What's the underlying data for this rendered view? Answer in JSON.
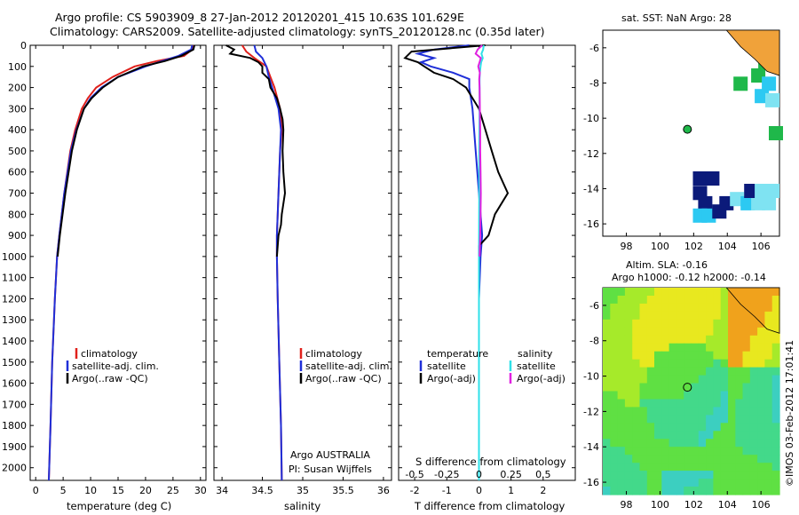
{
  "titles": {
    "line1": "Argo profile: CS 5903909_8 27-Jan-2012 20120201_415 10.63S 101.629E",
    "line2": "Climatology: CARS2009. Satellite-adjusted climatology: synTS_20120128.nc (0.35d later)"
  },
  "side": {
    "sst_title": "sat. SST: NaN Argo: 28",
    "alt_title1": "Altim. SLA: -0.16",
    "alt_title2": "Argo h1000: -0.12 h2000: -0.14",
    "credit": "©IMOS 03-Feb-2012 17:01:41"
  },
  "colors": {
    "clim": "#e0201b",
    "sat": "#1f2fd8",
    "argo": "#000000",
    "cyan": "#2fe0e8",
    "magenta": "#e020e0"
  },
  "chart_data": [
    {
      "type": "line",
      "name": "temperature",
      "xlabel": "temperature (deg C)",
      "xlim": [
        -1,
        31
      ],
      "xticks": [
        "0",
        "5",
        "10",
        "15",
        "20",
        "25",
        "30"
      ],
      "xtick_values": [
        0,
        5,
        10,
        15,
        20,
        25,
        30
      ],
      "ylim": [
        0,
        2060
      ],
      "yticks": [
        "0",
        "100",
        "200",
        "300",
        "400",
        "500",
        "600",
        "700",
        "800",
        "900",
        "1000",
        "1100",
        "1200",
        "1300",
        "1400",
        "1500",
        "1600",
        "1700",
        "1800",
        "1900",
        "2000"
      ],
      "ytick_values": [
        0,
        100,
        200,
        300,
        400,
        500,
        600,
        700,
        800,
        900,
        1000,
        1100,
        1200,
        1300,
        1400,
        1500,
        1600,
        1700,
        1800,
        1900,
        2000
      ],
      "legend": [
        "climatology",
        "satellite-adj. clim.",
        "Argo(..raw -QC)"
      ],
      "series": [
        {
          "name": "climatology",
          "color_key": "clim",
          "depth": [
            0,
            20,
            50,
            75,
            100,
            150,
            200,
            250,
            300,
            400,
            500,
            700,
            900,
            1000,
            1200,
            1500,
            1800,
            2060
          ],
          "values": [
            28.8,
            28.5,
            27,
            22,
            18,
            14,
            11,
            9.5,
            8.4,
            7.2,
            6.3,
            5.2,
            4.3,
            3.9,
            3.5,
            3.0,
            2.7,
            2.4
          ]
        },
        {
          "name": "satellite-adj. clim.",
          "color_key": "sat",
          "depth": [
            0,
            20,
            50,
            75,
            100,
            150,
            200,
            250,
            300,
            400,
            500,
            700,
            900,
            1000,
            1200,
            1500,
            1800,
            2060
          ],
          "values": [
            28.5,
            28.3,
            26,
            23,
            20,
            15,
            12,
            10,
            8.8,
            7.4,
            6.4,
            5.2,
            4.3,
            3.9,
            3.5,
            3.0,
            2.7,
            2.4
          ]
        },
        {
          "name": "Argo(..raw -QC)",
          "color_key": "argo",
          "depth": [
            0,
            20,
            50,
            75,
            100,
            150,
            200,
            250,
            300,
            400,
            500,
            700,
            900,
            1000
          ],
          "values": [
            28.9,
            28.7,
            26.5,
            23.5,
            19.5,
            15,
            12.2,
            10.2,
            8.8,
            7.5,
            6.6,
            5.4,
            4.4,
            4.0
          ]
        }
      ]
    },
    {
      "type": "line",
      "name": "salinity",
      "xlabel": "salinity",
      "xlim": [
        33.9,
        36.1
      ],
      "xticks": [
        "34",
        "34.5",
        "35",
        "35.5",
        "36"
      ],
      "xtick_values": [
        34,
        34.5,
        35,
        35.5,
        36
      ],
      "ylim": [
        0,
        2060
      ],
      "legend": [
        "climatology",
        "satellite-adj. clim.",
        "Argo(..raw -QC)"
      ],
      "annotation": [
        "Argo AUSTRALIA",
        "PI: Susan Wijffels"
      ],
      "series": [
        {
          "name": "climatology",
          "color_key": "clim",
          "depth": [
            0,
            30,
            60,
            100,
            150,
            200,
            300,
            400,
            500,
            700,
            900,
            1000,
            1200,
            1500,
            1800,
            2060
          ],
          "values": [
            34.25,
            34.3,
            34.4,
            34.55,
            34.6,
            34.65,
            34.72,
            34.74,
            34.72,
            34.7,
            34.68,
            34.68,
            34.69,
            34.71,
            34.73,
            34.74
          ]
        },
        {
          "name": "satellite-adj. clim.",
          "color_key": "sat",
          "depth": [
            0,
            30,
            60,
            100,
            150,
            200,
            300,
            400,
            500,
            700,
            900,
            1000,
            1200,
            1500,
            1800,
            2060
          ],
          "values": [
            34.4,
            34.42,
            34.5,
            34.55,
            34.58,
            34.62,
            34.7,
            34.73,
            34.72,
            34.7,
            34.68,
            34.68,
            34.69,
            34.71,
            34.73,
            34.74
          ]
        },
        {
          "name": "Argo(..raw -QC)",
          "color_key": "argo",
          "depth": [
            0,
            20,
            40,
            60,
            80,
            100,
            130,
            160,
            200,
            250,
            300,
            350,
            400,
            500,
            600,
            700,
            800,
            850,
            900,
            950,
            1000
          ],
          "values": [
            34.05,
            34.15,
            34.1,
            34.35,
            34.45,
            34.5,
            34.5,
            34.58,
            34.6,
            34.68,
            34.72,
            34.75,
            34.76,
            34.75,
            34.76,
            34.78,
            34.74,
            34.73,
            34.7,
            34.69,
            34.68
          ]
        }
      ]
    },
    {
      "type": "line",
      "name": "differences",
      "xlabel": "T difference from climatology",
      "xlim": [
        -2.5,
        3
      ],
      "xticks": [
        "-2",
        "-1",
        "0",
        "1",
        "2"
      ],
      "xtick_values": [
        -2,
        -1,
        0,
        1,
        2
      ],
      "s_axis_label": "S difference from climatology",
      "s_ticks": [
        "-0.5",
        "-0.25",
        "0",
        "0.25",
        "0.5"
      ],
      "s_tick_values": [
        -0.5,
        -0.25,
        0,
        0.25,
        0.5
      ],
      "ylim": [
        0,
        2060
      ],
      "legend": {
        "temperature": "temperature",
        "salinity": "salinity",
        "satellite": "satellite",
        "argo": "Argo(-adj)"
      },
      "series": [
        {
          "name": "T satellite",
          "color_key": "sat",
          "depth": [
            0,
            20,
            40,
            60,
            80,
            100,
            130,
            160,
            200,
            300,
            400,
            500,
            700,
            900,
            1000,
            1200,
            1500,
            2060
          ],
          "values": [
            -0.3,
            -1.4,
            -1.9,
            -1.4,
            -1.8,
            -1.5,
            -0.8,
            -0.3,
            -0.3,
            -0.2,
            -0.15,
            -0.1,
            0,
            0.1,
            0.05,
            0,
            0,
            0
          ]
        },
        {
          "name": "T Argo(-adj)",
          "color_key": "argo",
          "depth": [
            0,
            30,
            60,
            80,
            100,
            130,
            160,
            200,
            250,
            300,
            400,
            500,
            600,
            700,
            800,
            900,
            950,
            1000
          ],
          "values": [
            0.2,
            -2.1,
            -2.3,
            -1.9,
            -1.7,
            -1.4,
            -0.8,
            -0.4,
            -0.2,
            0,
            0.2,
            0.4,
            0.6,
            0.9,
            0.5,
            0.3,
            0,
            0
          ]
        },
        {
          "name": "S satellite",
          "color_key": "cyan",
          "depth": [
            0,
            20,
            40,
            60,
            80,
            100,
            130,
            160,
            200,
            300,
            500,
            700,
            1000,
            1500,
            2060
          ],
          "values": [
            0.15,
            0.13,
            0.08,
            0.12,
            0.07,
            0.05,
            0.03,
            0.02,
            0.02,
            0.02,
            0.01,
            0.01,
            0,
            0,
            0
          ]
        },
        {
          "name": "S Argo(-adj)",
          "color_key": "magenta",
          "depth": [
            0,
            20,
            40,
            60,
            80,
            100,
            130,
            160,
            200,
            300,
            400,
            500,
            600,
            700,
            800,
            900,
            1000
          ],
          "values": [
            0.1,
            -0.04,
            -0.1,
            0.06,
            0.02,
            -0.02,
            0.03,
            0.01,
            0.02,
            0.03,
            0.04,
            0.04,
            0.05,
            0.06,
            0.05,
            0.04,
            0.02
          ]
        }
      ]
    },
    {
      "type": "heatmap",
      "name": "sat_sst_map",
      "xticks": [
        "98",
        "100",
        "102",
        "104",
        "106"
      ],
      "xtick_values": [
        98,
        100,
        102,
        104,
        106
      ],
      "yticks": [
        "-6",
        "-8",
        "-10",
        "-12",
        "-14",
        "-16"
      ],
      "ytick_values": [
        -6,
        -8,
        -10,
        -12,
        -14,
        -16
      ],
      "xlim": [
        96.6,
        107.1
      ],
      "ylim": [
        -16.7,
        -5.0
      ],
      "argo_position": [
        101.629,
        -10.63
      ]
    },
    {
      "type": "heatmap",
      "name": "altimetry_sla_map",
      "xticks": [
        "98",
        "100",
        "102",
        "104",
        "106"
      ],
      "xtick_values": [
        98,
        100,
        102,
        104,
        106
      ],
      "yticks": [
        "-6",
        "-8",
        "-10",
        "-12",
        "-14",
        "-16"
      ],
      "ytick_values": [
        -6,
        -8,
        -10,
        -12,
        -14,
        -16
      ],
      "xlim": [
        96.6,
        107.1
      ],
      "ylim": [
        -16.7,
        -5.0
      ],
      "argo_position": [
        101.629,
        -10.63
      ]
    }
  ]
}
